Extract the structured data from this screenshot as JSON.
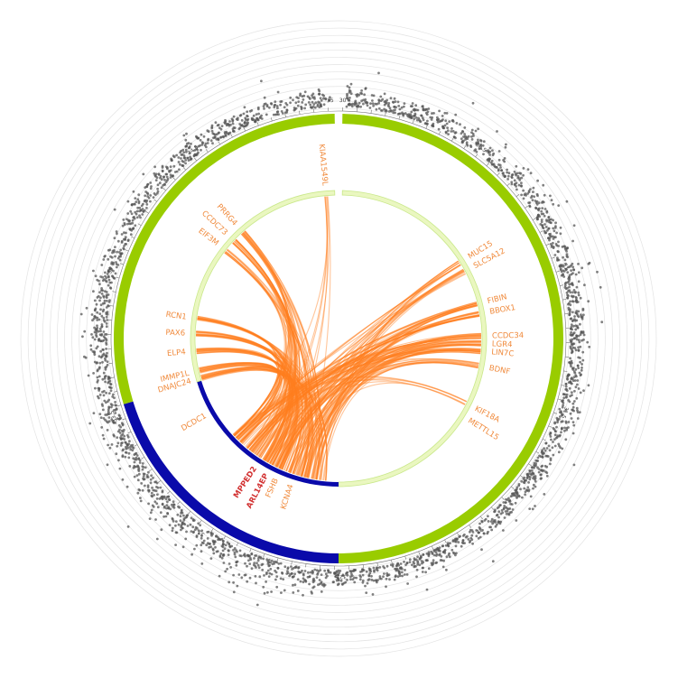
{
  "colors": {
    "outer_ring_green": "#99cc00",
    "outer_ring_blue": "#0a0aaa",
    "inner_ring_pale": "#eaf7c0",
    "inner_ring_pale_stroke": "#c9e88a",
    "link_orange": "#ff7f1e",
    "label_orange": "#f08a3c",
    "label_red": "#d23232",
    "scatter_point": "#555555",
    "track_circle": "#e3e3e3"
  },
  "chart_data": {
    "type": "circos",
    "outer_ticks": [
      "30",
      "30.5",
      "31",
      "31.5",
      "32",
      "32.5",
      "33",
      "33.5",
      "34",
      "34.5",
      "35"
    ],
    "genes": [
      {
        "name": "KIAA1549L",
        "angle": 355,
        "highlight": false
      },
      {
        "name": "MUC15",
        "angle": 58,
        "highlight": false
      },
      {
        "name": "SLC5A12",
        "angle": 62,
        "highlight": false
      },
      {
        "name": "FIBIN",
        "angle": 76,
        "highlight": false
      },
      {
        "name": "BBOX1",
        "angle": 80,
        "highlight": false
      },
      {
        "name": "CCDC34",
        "angle": 89,
        "highlight": false
      },
      {
        "name": "LGR4",
        "angle": 92,
        "highlight": false
      },
      {
        "name": "LIN7C",
        "angle": 95,
        "highlight": false
      },
      {
        "name": "BDNF",
        "angle": 101,
        "highlight": false
      },
      {
        "name": "KIF18A",
        "angle": 117,
        "highlight": false
      },
      {
        "name": "METTL15",
        "angle": 122,
        "highlight": false
      },
      {
        "name": "KCNA4",
        "angle": 198,
        "highlight": false
      },
      {
        "name": "FSHB",
        "angle": 204,
        "highlight": false
      },
      {
        "name": "ARL14EP",
        "angle": 208,
        "highlight": true
      },
      {
        "name": "MPPED2",
        "angle": 213,
        "highlight": true
      },
      {
        "name": "DCDC1",
        "angle": 240,
        "highlight": false
      },
      {
        "name": "DNAJC24",
        "angle": 254,
        "highlight": false
      },
      {
        "name": "IMMP1L",
        "angle": 257,
        "highlight": false
      },
      {
        "name": "ELP4",
        "angle": 265,
        "highlight": false
      },
      {
        "name": "PAX6",
        "angle": 272,
        "highlight": false
      },
      {
        "name": "RCN1",
        "angle": 278,
        "highlight": false
      },
      {
        "name": "EIF3M",
        "angle": 308,
        "highlight": false
      },
      {
        "name": "CCDC73",
        "angle": 313,
        "highlight": false
      },
      {
        "name": "PRRG4",
        "angle": 318,
        "highlight": false
      }
    ],
    "highlight_region": {
      "start_angle": 180,
      "end_angle": 253
    },
    "link_targets": [
      {
        "gene": "KIAA1549L",
        "weight": 1
      },
      {
        "gene": "MUC15",
        "weight": 2
      },
      {
        "gene": "SLC5A12",
        "weight": 2
      },
      {
        "gene": "FIBIN",
        "weight": 3
      },
      {
        "gene": "BBOX1",
        "weight": 3
      },
      {
        "gene": "CCDC34",
        "weight": 3
      },
      {
        "gene": "LGR4",
        "weight": 3
      },
      {
        "gene": "LIN7C",
        "weight": 3
      },
      {
        "gene": "BDNF",
        "weight": 2
      },
      {
        "gene": "KIF18A",
        "weight": 1
      },
      {
        "gene": "PRRG4",
        "weight": 3
      },
      {
        "gene": "CCDC73",
        "weight": 3
      },
      {
        "gene": "EIF3M",
        "weight": 2
      },
      {
        "gene": "RCN1",
        "weight": 3
      },
      {
        "gene": "PAX6",
        "weight": 3
      },
      {
        "gene": "ELP4",
        "weight": 3
      },
      {
        "gene": "IMMP1L",
        "weight": 3
      },
      {
        "gene": "DNAJC24",
        "weight": 3
      }
    ]
  }
}
